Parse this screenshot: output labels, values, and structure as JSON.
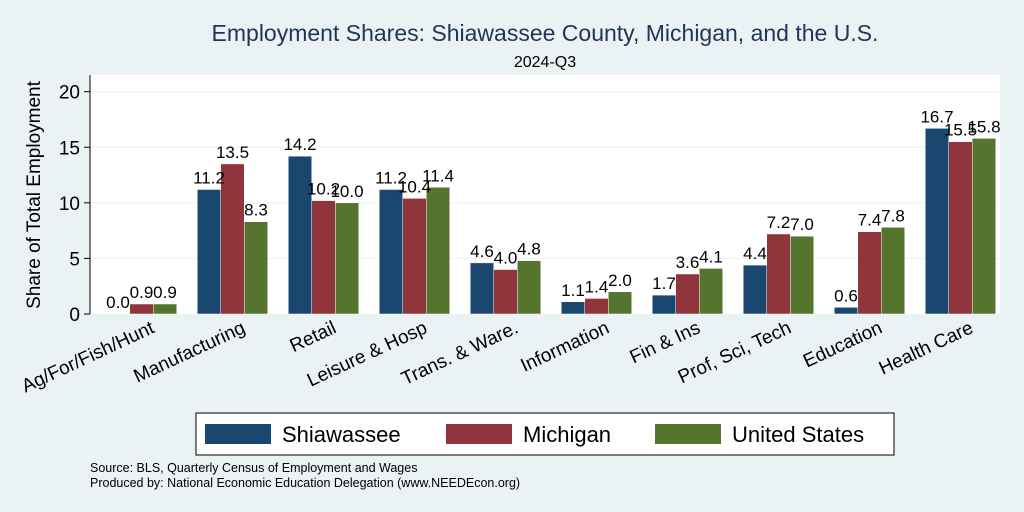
{
  "chart_data": {
    "type": "bar",
    "title": "Employment Shares: Shiawassee County, Michigan, and the U.S.",
    "subtitle": "2024-Q3",
    "ylabel": "Share of Total Employment",
    "xlabel": "",
    "ylim": [
      0,
      21.5
    ],
    "yticks": [
      0,
      5,
      10,
      15,
      20
    ],
    "ytick_labels": [
      "0",
      "5",
      "10",
      "15",
      "20"
    ],
    "grid": true,
    "legend_position": "bottom",
    "categories": [
      "Ag/For/Fish/Hunt",
      "Manufacturing",
      "Retail",
      "Leisure & Hosp",
      "Trans. & Ware.",
      "Information",
      "Fin & Ins",
      "Prof, Sci, Tech",
      "Education",
      "Health Care"
    ],
    "series": [
      {
        "name": "Shiawassee",
        "color": "#1a476f",
        "values": [
          0.0,
          11.2,
          14.2,
          11.2,
          4.6,
          1.1,
          1.7,
          4.4,
          0.6,
          16.7
        ],
        "labels": [
          "0.0",
          "11.2",
          "14.2",
          "11.2",
          "4.6",
          "1.1",
          "1.7",
          "4.4",
          "0.6",
          "16.7"
        ]
      },
      {
        "name": "Michigan",
        "color": "#90353b",
        "values": [
          0.9,
          13.5,
          10.2,
          10.4,
          4.0,
          1.4,
          3.6,
          7.2,
          7.4,
          15.5
        ],
        "labels": [
          "0.9",
          "13.5",
          "10.2",
          "10.4",
          "4.0",
          "1.4",
          "3.6",
          "7.2",
          "7.4",
          "15.5"
        ]
      },
      {
        "name": "United States",
        "color": "#55752f",
        "values": [
          0.9,
          8.3,
          10.0,
          11.4,
          4.8,
          2.0,
          4.1,
          7.0,
          7.8,
          15.8
        ],
        "labels": [
          "0.9",
          "8.3",
          "10.0",
          "11.4",
          "4.8",
          "2.0",
          "4.1",
          "7.0",
          "7.8",
          "15.8"
        ]
      }
    ]
  },
  "notes": {
    "source": "Source: BLS, Quarterly Census of Employment and Wages",
    "produced_by": "Produced by: National Economic Education Delegation (www.NEEDEcon.org)"
  },
  "colors": {
    "background": "#eaf2f3",
    "plot_background": "#ffffff",
    "grid": "#eaf2f3",
    "title": "#1f3558"
  }
}
